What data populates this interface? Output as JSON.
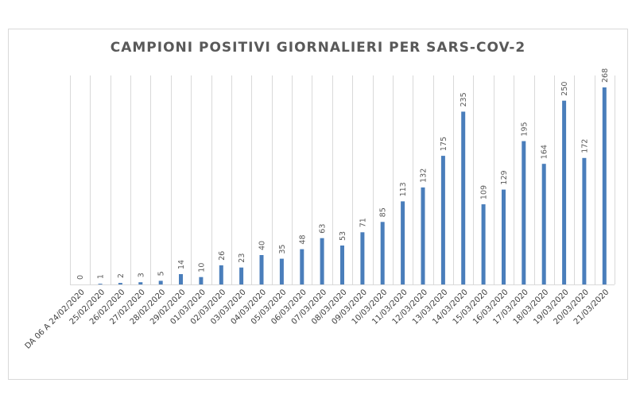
{
  "chart_data": {
    "type": "bar",
    "title": "CAMPIONI POSITIVI GIORNALIERI PER SARS-COV-2",
    "xlabel": "",
    "ylabel": "",
    "ylim": [
      0,
      280
    ],
    "grid": "vertical",
    "legend": "none",
    "bar_color": "#4a7ebb",
    "categories": [
      "DA 06 A 24/02/2020",
      "25/02/2020",
      "26/02/2020",
      "27/02/2020",
      "28/02/2020",
      "29/02/2020",
      "01/03/2020",
      "02/03/2020",
      "03/03/2020",
      "04/03/2020",
      "05/03/2020",
      "06/03/2020",
      "07/03/2020",
      "08/03/2020",
      "09/03/2020",
      "10/03/2020",
      "11/03/2020",
      "12/03/2020",
      "13/03/2020",
      "14/03/2020",
      "15/03/2020",
      "16/03/2020",
      "17/03/2020",
      "18/03/2020",
      "19/03/2020",
      "20/03/2020",
      "21/03/2020"
    ],
    "values": [
      0,
      1,
      2,
      3,
      5,
      14,
      10,
      26,
      23,
      40,
      35,
      48,
      63,
      53,
      71,
      85,
      113,
      132,
      175,
      235,
      109,
      129,
      195,
      164,
      250,
      172,
      268
    ]
  }
}
